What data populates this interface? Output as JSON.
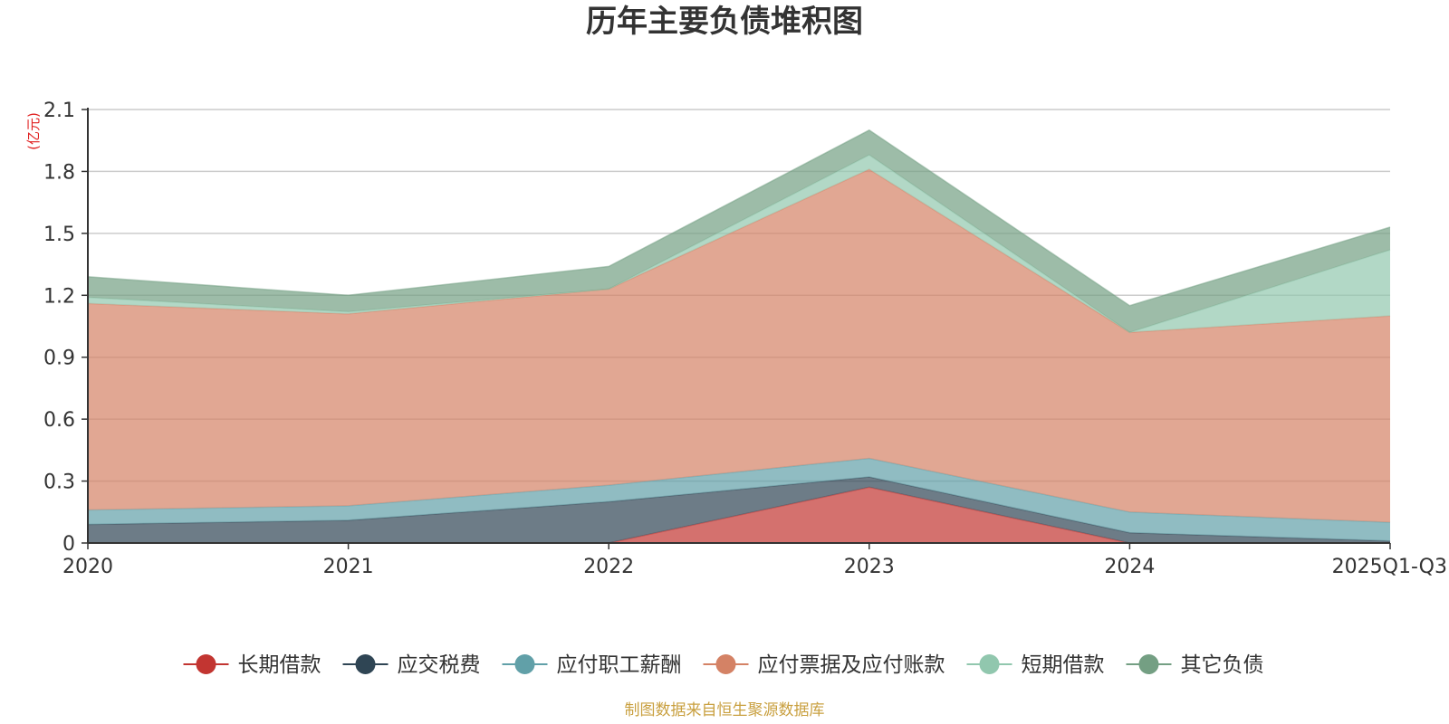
{
  "chart_data": {
    "type": "area",
    "stacked": true,
    "title": "历年主要负债堆积图",
    "unit_label": "(亿元)",
    "categories": [
      "2020",
      "2021",
      "2022",
      "2023",
      "2024",
      "2025Q1-Q3"
    ],
    "ylim": [
      0,
      2.1
    ],
    "yticks": [
      0,
      0.3,
      0.6,
      0.9,
      1.2,
      1.5,
      1.8,
      2.1
    ],
    "ytick_labels": [
      "0",
      "0.3",
      "0.6",
      "0.9",
      "1.2",
      "1.5",
      "1.8",
      "2.1"
    ],
    "grid": true,
    "legend_position": "bottom",
    "series": [
      {
        "name": "长期借款",
        "color": "#c23531",
        "values": [
          0.0,
          0.0,
          0.0,
          0.27,
          0.0,
          0.0
        ]
      },
      {
        "name": "应交税费",
        "color": "#2f4554",
        "values": [
          0.09,
          0.11,
          0.2,
          0.05,
          0.05,
          0.01
        ]
      },
      {
        "name": "应付职工薪酬",
        "color": "#61a0a8",
        "values": [
          0.07,
          0.07,
          0.08,
          0.09,
          0.1,
          0.09
        ]
      },
      {
        "name": "应付票据及应付账款",
        "color": "#d48265",
        "values": [
          1.0,
          0.93,
          0.95,
          1.4,
          0.87,
          1.0
        ]
      },
      {
        "name": "短期借款",
        "color": "#91c7ae",
        "values": [
          0.03,
          0.01,
          0.0,
          0.07,
          0.0,
          0.32
        ]
      },
      {
        "name": "其它负债",
        "color": "#749f83",
        "values": [
          0.1,
          0.08,
          0.11,
          0.12,
          0.13,
          0.11
        ]
      }
    ]
  },
  "footer": {
    "source": "制图数据来自恒生聚源数据库"
  }
}
